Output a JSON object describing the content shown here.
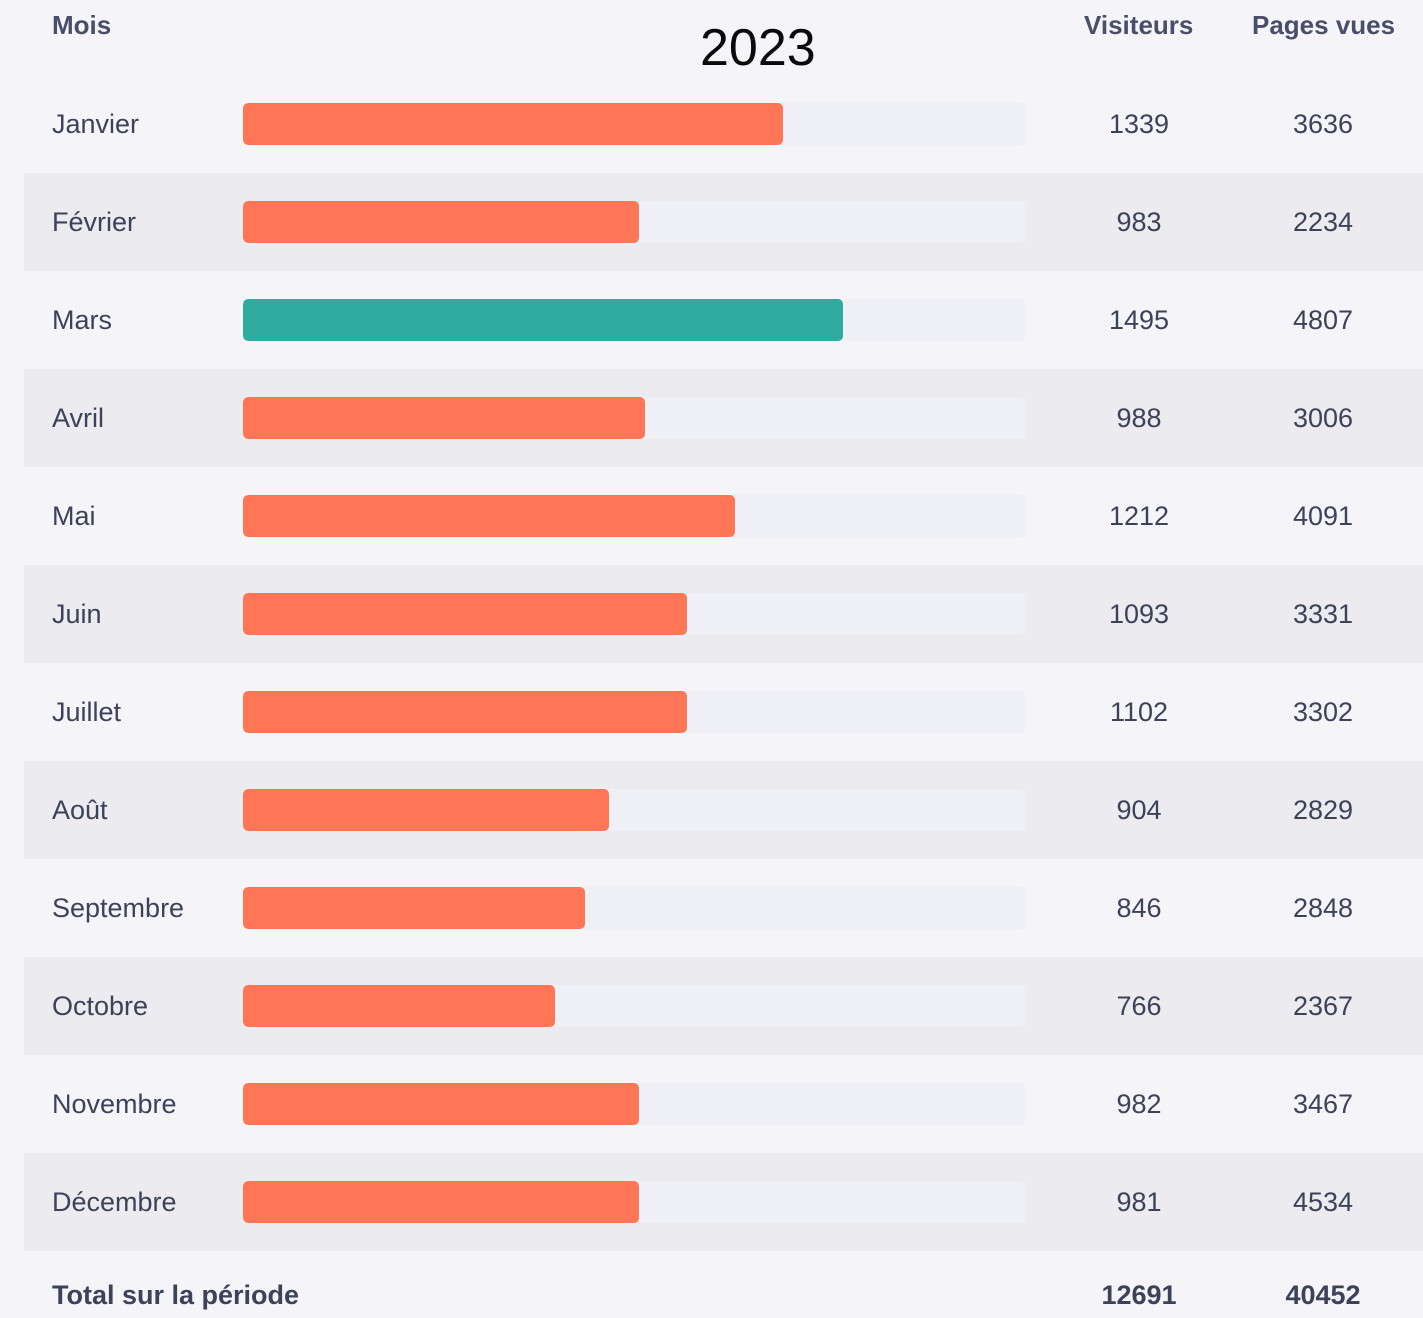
{
  "header": {
    "month_label": "Mois",
    "visitors_label": "Visiteurs",
    "pages_label": "Pages vues",
    "year": "2023"
  },
  "colors": {
    "bar_default": "#ff7657",
    "bar_highlight": "#2fab9f",
    "track": "#eef0f5"
  },
  "chart_data": {
    "type": "bar",
    "title": "2023",
    "categories": [
      "Janvier",
      "Février",
      "Mars",
      "Avril",
      "Mai",
      "Juin",
      "Juillet",
      "Août",
      "Septembre",
      "Octobre",
      "Novembre",
      "Décembre"
    ],
    "series": [
      {
        "name": "Visiteurs",
        "values": [
          1339,
          983,
          1495,
          988,
          1212,
          1093,
          1102,
          904,
          846,
          766,
          982,
          981
        ]
      },
      {
        "name": "Pages vues",
        "values": [
          3636,
          2234,
          4807,
          3006,
          4091,
          3331,
          3302,
          2829,
          2848,
          2367,
          3467,
          4534
        ]
      }
    ],
    "bar_fractions": [
      0.69,
      0.506,
      0.766,
      0.514,
      0.628,
      0.567,
      0.567,
      0.468,
      0.437,
      0.399,
      0.506,
      0.506
    ],
    "highlight_index": 2
  },
  "total": {
    "label": "Total sur la période",
    "visitors": "12691",
    "pages": "40452"
  }
}
